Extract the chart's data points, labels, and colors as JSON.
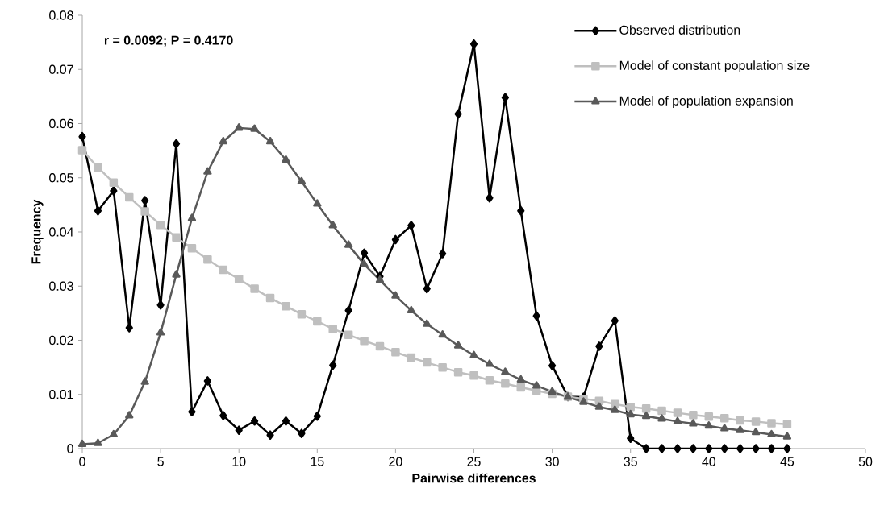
{
  "chart_data": {
    "type": "line",
    "xlabel": "Pairwise differences",
    "ylabel": "Frequency",
    "annotations": [
      "r = 0.0092; P = 0.4170"
    ],
    "x": [
      0,
      1,
      2,
      3,
      4,
      5,
      6,
      7,
      8,
      9,
      10,
      11,
      12,
      13,
      14,
      15,
      16,
      17,
      18,
      19,
      20,
      21,
      22,
      23,
      24,
      25,
      26,
      27,
      28,
      29,
      30,
      31,
      32,
      33,
      34,
      35,
      36,
      37,
      38,
      39,
      40,
      41,
      42,
      43,
      44,
      45
    ],
    "xlim": [
      0,
      50
    ],
    "xticks": [
      0,
      5,
      10,
      15,
      20,
      25,
      30,
      35,
      40,
      45,
      50
    ],
    "ylim": [
      0,
      0.08
    ],
    "yticks": [
      0,
      0.01,
      0.02,
      0.03,
      0.04,
      0.05,
      0.06,
      0.07,
      0.08
    ],
    "legend": "top right",
    "line_style": "solid",
    "series": [
      {
        "name": "Observed distribution",
        "color": "#000000",
        "marker": "diamond",
        "values": [
          0.0576,
          0.0439,
          0.0476,
          0.0223,
          0.0458,
          0.0265,
          0.0563,
          0.0068,
          0.0125,
          0.0061,
          0.0034,
          0.0051,
          0.0025,
          0.0051,
          0.0028,
          0.006,
          0.0154,
          0.0255,
          0.0361,
          0.0318,
          0.0386,
          0.0412,
          0.0295,
          0.036,
          0.0618,
          0.0747,
          0.0463,
          0.0648,
          0.0439,
          0.0245,
          0.0153,
          0.0096,
          0.0095,
          0.0189,
          0.0236,
          0.0019,
          0,
          0,
          0,
          0,
          0,
          0,
          0,
          0,
          0,
          0
        ]
      },
      {
        "name": "Model of constant population size",
        "color": "#bfbfbf",
        "marker": "square",
        "values": [
          0.0551,
          0.0519,
          0.0491,
          0.0464,
          0.0438,
          0.0413,
          0.039,
          0.037,
          0.0349,
          0.033,
          0.0313,
          0.0295,
          0.0278,
          0.0263,
          0.0248,
          0.0235,
          0.0221,
          0.021,
          0.0199,
          0.0189,
          0.0178,
          0.0168,
          0.0159,
          0.015,
          0.0141,
          0.0135,
          0.0126,
          0.012,
          0.0113,
          0.0107,
          0.0101,
          0.0096,
          0.0092,
          0.0088,
          0.0082,
          0.0077,
          0.0074,
          0.007,
          0.0066,
          0.0062,
          0.0059,
          0.0056,
          0.0052,
          0.005,
          0.0047,
          0.0045
        ]
      },
      {
        "name": "Model of population expansion",
        "color": "#595959",
        "marker": "triangle",
        "values": [
          0.0008,
          0.001,
          0.0026,
          0.0061,
          0.0123,
          0.0214,
          0.0321,
          0.0425,
          0.0511,
          0.0567,
          0.0592,
          0.059,
          0.0567,
          0.0533,
          0.0493,
          0.0452,
          0.0412,
          0.0376,
          0.034,
          0.0311,
          0.0282,
          0.0255,
          0.023,
          0.021,
          0.019,
          0.0172,
          0.0156,
          0.0141,
          0.0127,
          0.0116,
          0.0105,
          0.0095,
          0.0086,
          0.0077,
          0.0071,
          0.0063,
          0.006,
          0.0055,
          0.005,
          0.0046,
          0.0042,
          0.0037,
          0.0034,
          0.003,
          0.0026,
          0.0022
        ]
      }
    ]
  }
}
